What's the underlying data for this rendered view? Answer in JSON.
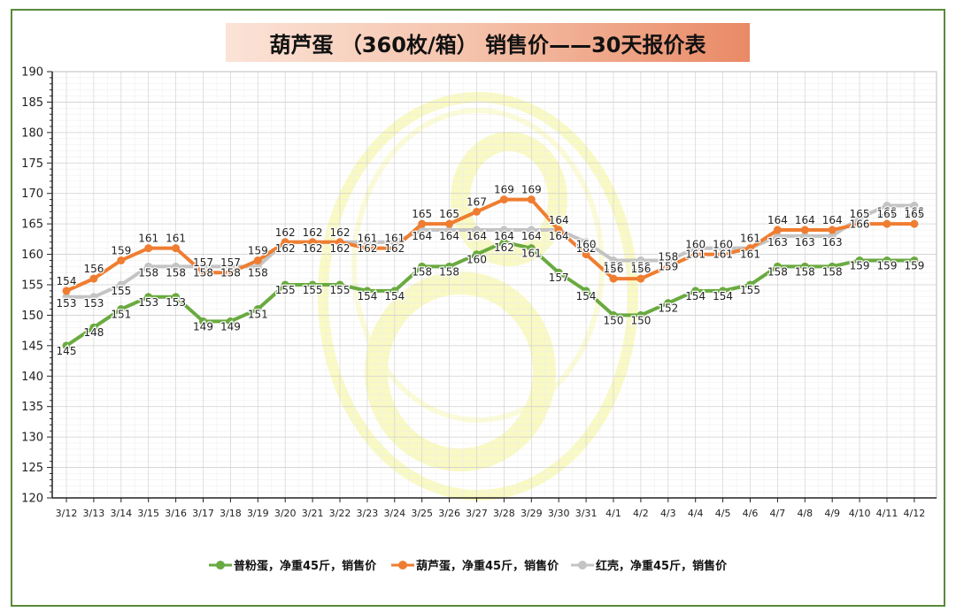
{
  "chart_data": {
    "type": "line",
    "title": "葫芦蛋 （360枚/箱） 销售价——30天报价表",
    "xlabel": "",
    "ylabel": "",
    "ylim": [
      120,
      190
    ],
    "yticks": [
      120,
      125,
      130,
      135,
      140,
      145,
      150,
      155,
      160,
      165,
      170,
      175,
      180,
      185,
      190
    ],
    "grid": true,
    "legend_position": "bottom",
    "categories": [
      "3/12",
      "3/13",
      "3/14",
      "3/15",
      "3/16",
      "3/17",
      "3/18",
      "3/19",
      "3/20",
      "3/21",
      "3/22",
      "3/23",
      "3/24",
      "3/25",
      "3/26",
      "3/27",
      "3/28",
      "3/29",
      "3/30",
      "3/31",
      "4/1",
      "4/2",
      "4/3",
      "4/4",
      "4/5",
      "4/6",
      "4/7",
      "4/8",
      "4/9",
      "4/10",
      "4/11",
      "4/12"
    ],
    "series": [
      {
        "name": "普粉蛋，净重45斤，销售价",
        "color": "#6aaa40",
        "values": [
          145,
          148,
          151,
          153,
          153,
          149,
          149,
          151,
          155,
          155,
          155,
          154,
          154,
          158,
          158,
          160,
          162,
          161,
          157,
          154,
          150,
          150,
          152,
          154,
          154,
          155,
          158,
          158,
          158,
          159,
          159,
          159
        ]
      },
      {
        "name": "葫芦蛋，净重45斤，销售价",
        "color": "#ef7d31",
        "values": [
          154,
          156,
          159,
          161,
          161,
          157,
          157,
          159,
          162,
          162,
          162,
          161,
          161,
          165,
          165,
          167,
          169,
          169,
          164,
          160,
          156,
          156,
          158,
          160,
          160,
          161,
          164,
          164,
          164,
          165,
          165,
          165
        ]
      },
      {
        "name": "红壳，净重45斤，销售价",
        "color": "#c4c4c4",
        "values": [
          153,
          153,
          155,
          158,
          158,
          158,
          158,
          158,
          162,
          162,
          162,
          162,
          162,
          164,
          164,
          164,
          164,
          164,
          164,
          162,
          159,
          159,
          159,
          161,
          161,
          161,
          163,
          163,
          163,
          166,
          168,
          168
        ]
      }
    ]
  }
}
